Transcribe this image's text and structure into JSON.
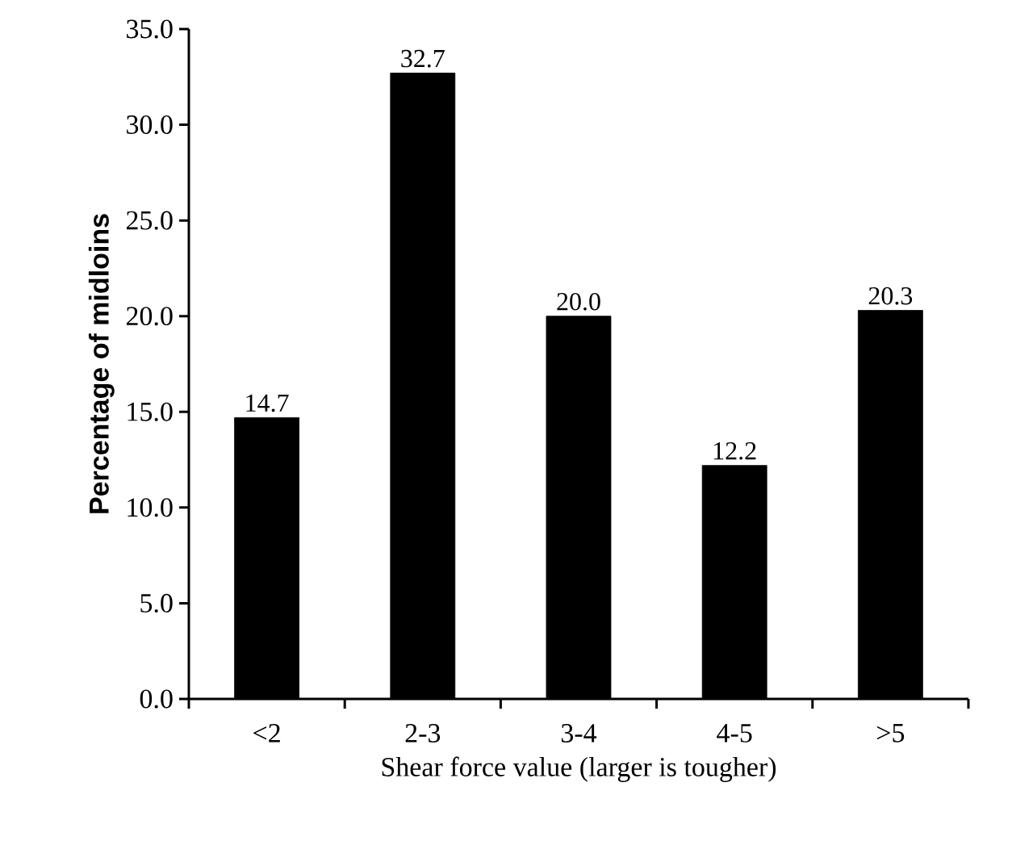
{
  "chart_data": {
    "type": "bar",
    "xlabel": "Shear force value (larger is tougher)",
    "ylabel": "Percentage of midloins",
    "categories": [
      "<2",
      "2-3",
      "3-4",
      "4-5",
      ">5"
    ],
    "values": [
      14.7,
      32.7,
      20.0,
      12.2,
      20.3
    ],
    "color": "#000000",
    "ylim": [
      0,
      35
    ],
    "yticks": [
      {
        "value": 0,
        "label": "0.0"
      },
      {
        "value": 5,
        "label": "5.0"
      },
      {
        "value": 10,
        "label": "10.0"
      },
      {
        "value": 15,
        "label": "15.0"
      },
      {
        "value": 20,
        "label": "20.0"
      },
      {
        "value": 25,
        "label": "25.0"
      },
      {
        "value": 30,
        "label": "30.0"
      },
      {
        "value": 35,
        "label": "35.0"
      }
    ],
    "value_labels": [
      "14.7",
      "32.7",
      "20.0",
      "12.2",
      "20.3"
    ],
    "grid": false
  }
}
